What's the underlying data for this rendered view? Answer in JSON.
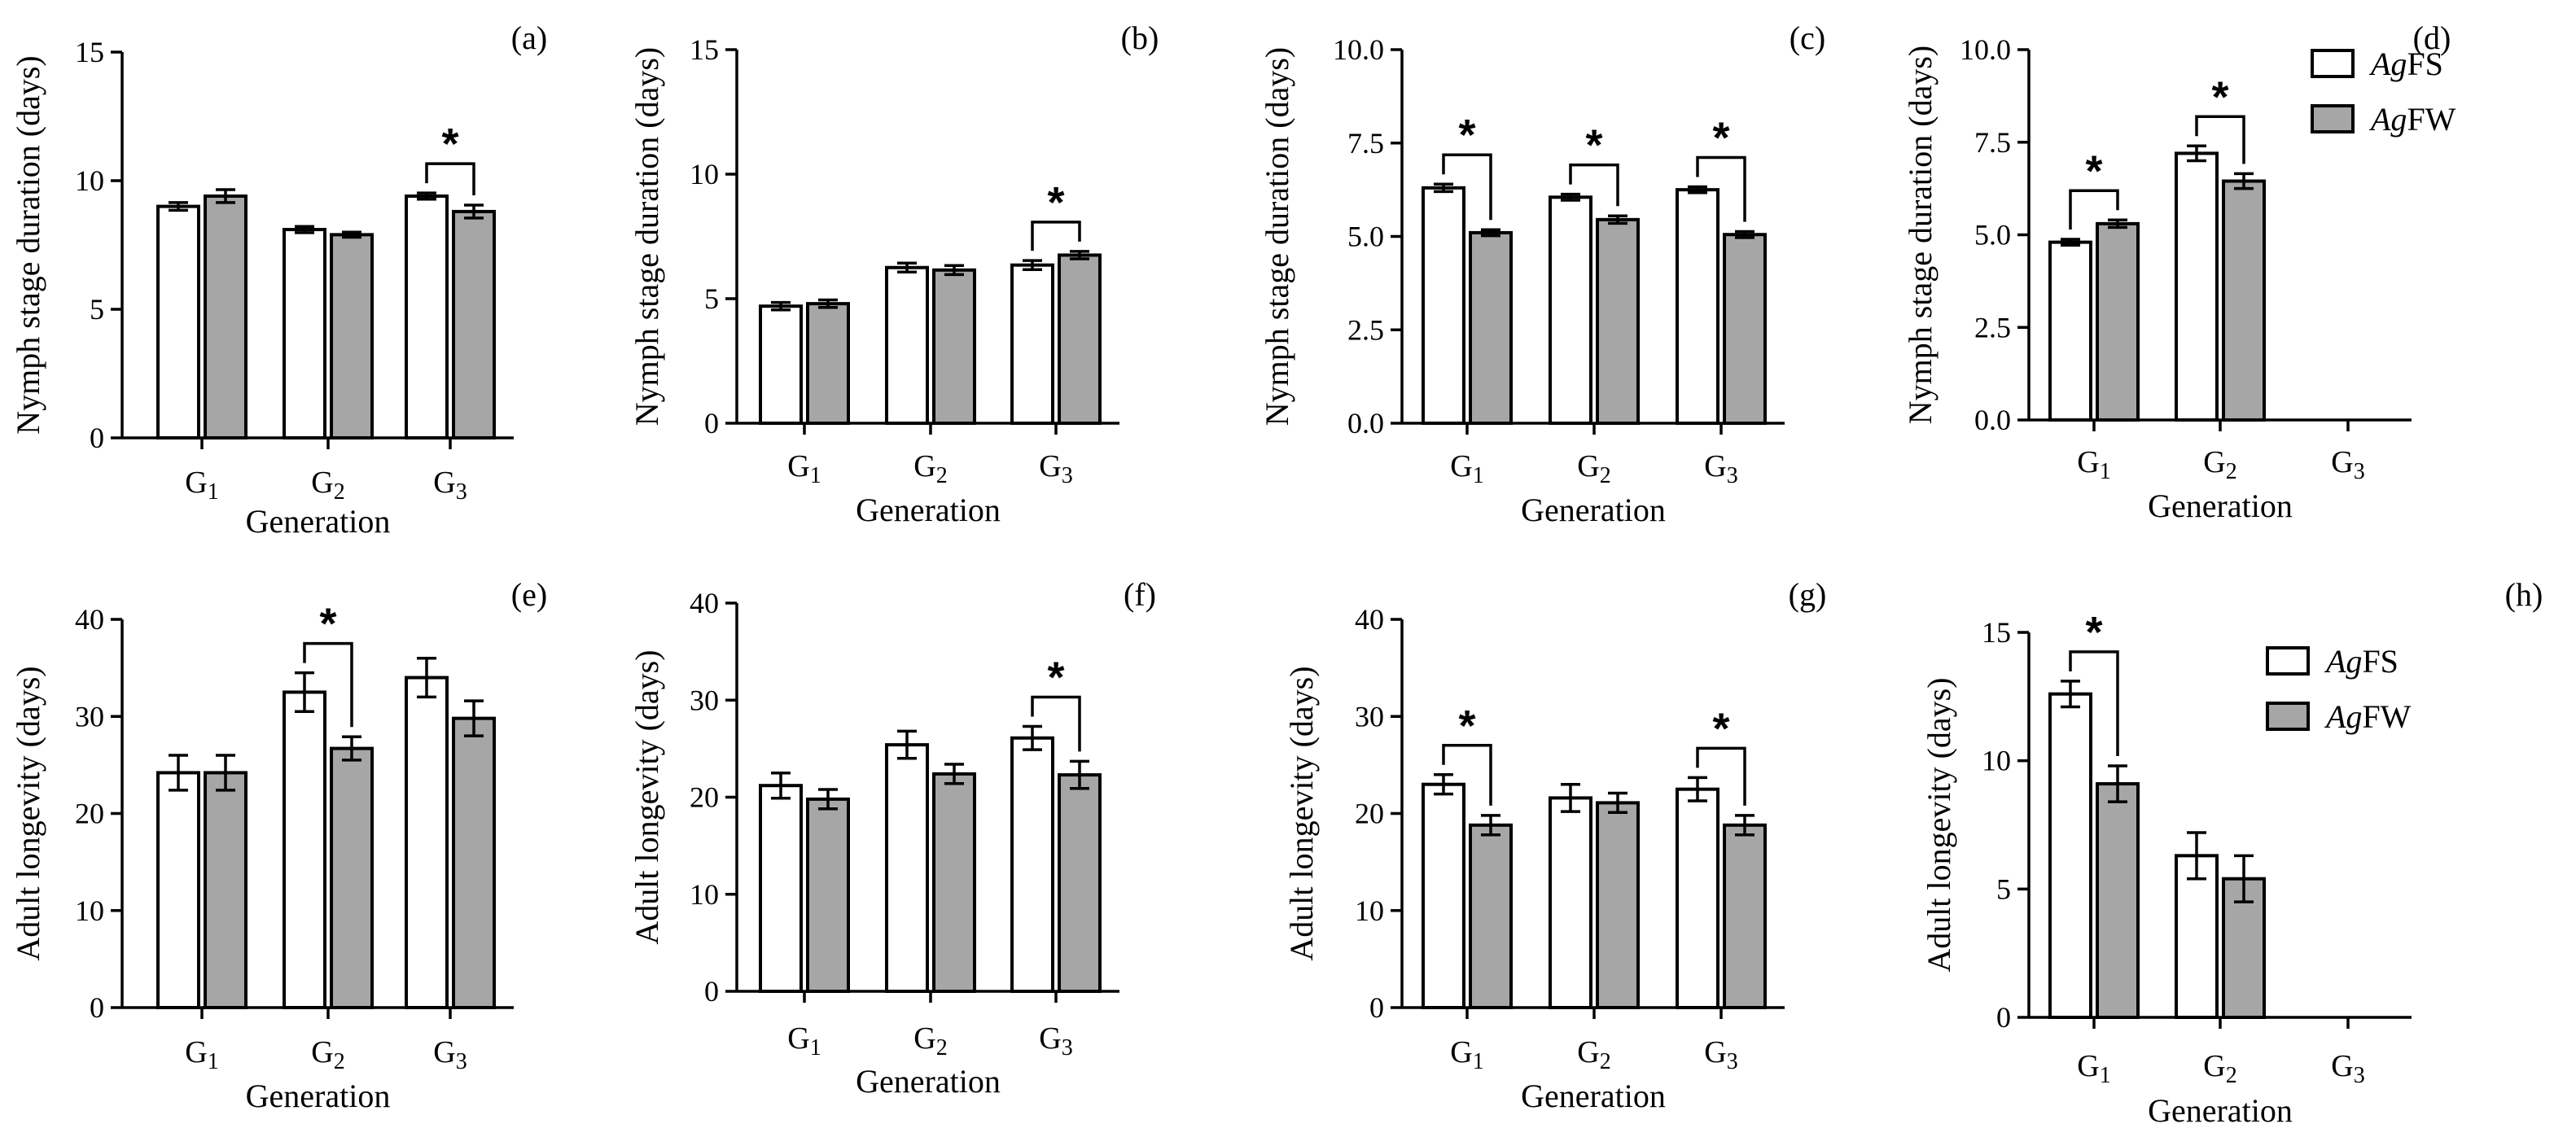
{
  "colors": {
    "AgFS": "#ffffff",
    "AgFW": "#a6a6a6",
    "axis": "#000000"
  },
  "chart_data": [
    {
      "panel": "(a)",
      "type": "bar",
      "ylabel": "Nymph stage duration (days)",
      "xlabel": "Generation",
      "ylim": [
        0,
        15
      ],
      "yticks": [
        0,
        5,
        10,
        15
      ],
      "ytick_labels": [
        "0",
        "5",
        "10",
        "15"
      ],
      "categories": [
        {
          "base": "G",
          "sub": "1"
        },
        {
          "base": "G",
          "sub": "2"
        },
        {
          "base": "G",
          "sub": "3"
        }
      ],
      "series": [
        {
          "name": "AgFS",
          "values": [
            9.0,
            8.1,
            9.4
          ],
          "errors": [
            0.15,
            0.12,
            0.12
          ]
        },
        {
          "name": "AgFW",
          "values": [
            9.4,
            7.9,
            8.8
          ],
          "errors": [
            0.25,
            0.1,
            0.25
          ]
        }
      ],
      "significance": [
        2
      ]
    },
    {
      "panel": "(b)",
      "type": "bar",
      "ylabel": "Nymph stage duration (days)",
      "xlabel": "Generation",
      "ylim": [
        0,
        15
      ],
      "yticks": [
        0,
        5,
        10,
        15
      ],
      "ytick_labels": [
        "0",
        "5",
        "10",
        "15"
      ],
      "categories": [
        {
          "base": "G",
          "sub": "1"
        },
        {
          "base": "G",
          "sub": "2"
        },
        {
          "base": "G",
          "sub": "3"
        }
      ],
      "series": [
        {
          "name": "AgFS",
          "values": [
            4.7,
            6.25,
            6.35
          ],
          "errors": [
            0.15,
            0.18,
            0.18
          ]
        },
        {
          "name": "AgFW",
          "values": [
            4.8,
            6.15,
            6.75
          ],
          "errors": [
            0.15,
            0.18,
            0.15
          ]
        }
      ],
      "significance": [
        2
      ]
    },
    {
      "panel": "(c)",
      "type": "bar",
      "ylabel": "Nymph stage duration (days)",
      "xlabel": "Generation",
      "ylim": [
        0,
        10
      ],
      "yticks": [
        0,
        2.5,
        5,
        7.5,
        10
      ],
      "ytick_labels": [
        "0.0",
        "2.5",
        "5.0",
        "7.5",
        "10.0"
      ],
      "categories": [
        {
          "base": "G",
          "sub": "1"
        },
        {
          "base": "G",
          "sub": "2"
        },
        {
          "base": "G",
          "sub": "3"
        }
      ],
      "series": [
        {
          "name": "AgFS",
          "values": [
            6.3,
            6.05,
            6.25
          ],
          "errors": [
            0.1,
            0.08,
            0.08
          ]
        },
        {
          "name": "AgFW",
          "values": [
            5.1,
            5.45,
            5.05
          ],
          "errors": [
            0.08,
            0.1,
            0.08
          ]
        }
      ],
      "significance": [
        0,
        1,
        2
      ]
    },
    {
      "panel": "(d)",
      "type": "bar",
      "ylabel": "Nymph stage duration (days)",
      "xlabel": "Generation",
      "ylim": [
        0,
        10
      ],
      "yticks": [
        0,
        2.5,
        5,
        7.5,
        10
      ],
      "ytick_labels": [
        "0.0",
        "2.5",
        "5.0",
        "7.5",
        "10.0"
      ],
      "categories": [
        {
          "base": "G",
          "sub": "1"
        },
        {
          "base": "G",
          "sub": "2"
        },
        {
          "base": "G",
          "sub": "3"
        }
      ],
      "series": [
        {
          "name": "AgFS",
          "values": [
            4.8,
            7.2,
            null
          ],
          "errors": [
            0.08,
            0.2,
            null
          ]
        },
        {
          "name": "AgFW",
          "values": [
            5.3,
            6.45,
            null
          ],
          "errors": [
            0.1,
            0.2,
            null
          ]
        }
      ],
      "significance": [
        0,
        1
      ],
      "legend": [
        "AgFS",
        "AgFW"
      ],
      "legend_position": "top-right"
    },
    {
      "panel": "(e)",
      "type": "bar",
      "ylabel": "Adult longevity (days)",
      "xlabel": "Generation",
      "ylim": [
        0,
        40
      ],
      "yticks": [
        0,
        10,
        20,
        30,
        40
      ],
      "ytick_labels": [
        "0",
        "10",
        "20",
        "30",
        "40"
      ],
      "categories": [
        {
          "base": "G",
          "sub": "1"
        },
        {
          "base": "G",
          "sub": "2"
        },
        {
          "base": "G",
          "sub": "3"
        }
      ],
      "series": [
        {
          "name": "AgFS",
          "values": [
            24.2,
            32.5,
            34.0
          ],
          "errors": [
            1.8,
            2.0,
            2.0
          ]
        },
        {
          "name": "AgFW",
          "values": [
            24.2,
            26.7,
            29.8
          ],
          "errors": [
            1.8,
            1.2,
            1.8
          ]
        }
      ],
      "significance": [
        1
      ]
    },
    {
      "panel": "(f)",
      "type": "bar",
      "ylabel": "Adult longevity (days)",
      "xlabel": "Generation",
      "ylim": [
        0,
        40
      ],
      "yticks": [
        0,
        10,
        20,
        30,
        40
      ],
      "ytick_labels": [
        "0",
        "10",
        "20",
        "30",
        "40"
      ],
      "categories": [
        {
          "base": "G",
          "sub": "1"
        },
        {
          "base": "G",
          "sub": "2"
        },
        {
          "base": "G",
          "sub": "3"
        }
      ],
      "series": [
        {
          "name": "AgFS",
          "values": [
            21.2,
            25.4,
            26.1
          ],
          "errors": [
            1.3,
            1.4,
            1.2
          ]
        },
        {
          "name": "AgFW",
          "values": [
            19.8,
            22.4,
            22.3
          ],
          "errors": [
            1.0,
            1.0,
            1.4
          ]
        }
      ],
      "significance": [
        2
      ]
    },
    {
      "panel": "(g)",
      "type": "bar",
      "ylabel": "Adult longevity (days)",
      "xlabel": "Generation",
      "ylim": [
        0,
        40
      ],
      "yticks": [
        0,
        10,
        20,
        30,
        40
      ],
      "ytick_labels": [
        "0",
        "10",
        "20",
        "30",
        "40"
      ],
      "categories": [
        {
          "base": "G",
          "sub": "1"
        },
        {
          "base": "G",
          "sub": "2"
        },
        {
          "base": "G",
          "sub": "3"
        }
      ],
      "series": [
        {
          "name": "AgFS",
          "values": [
            23.0,
            21.6,
            22.5
          ],
          "errors": [
            1.0,
            1.4,
            1.2
          ]
        },
        {
          "name": "AgFW",
          "values": [
            18.8,
            21.1,
            18.8
          ],
          "errors": [
            1.0,
            1.0,
            1.0
          ]
        }
      ],
      "significance": [
        0,
        2
      ]
    },
    {
      "panel": "(h)",
      "type": "bar",
      "ylabel": "Adult longevity (days)",
      "xlabel": "Generation",
      "ylim": [
        0,
        15
      ],
      "yticks": [
        0,
        5,
        10,
        15
      ],
      "ytick_labels": [
        "0",
        "5",
        "10",
        "15"
      ],
      "categories": [
        {
          "base": "G",
          "sub": "1"
        },
        {
          "base": "G",
          "sub": "2"
        },
        {
          "base": "G",
          "sub": "3"
        }
      ],
      "series": [
        {
          "name": "AgFS",
          "values": [
            12.6,
            6.3,
            null
          ],
          "errors": [
            0.5,
            0.9,
            null
          ]
        },
        {
          "name": "AgFW",
          "values": [
            9.1,
            5.4,
            null
          ],
          "errors": [
            0.7,
            0.9,
            null
          ]
        }
      ],
      "significance": [
        0
      ],
      "legend": [
        "AgFS",
        "AgFW"
      ],
      "legend_position": "upper-right"
    }
  ]
}
